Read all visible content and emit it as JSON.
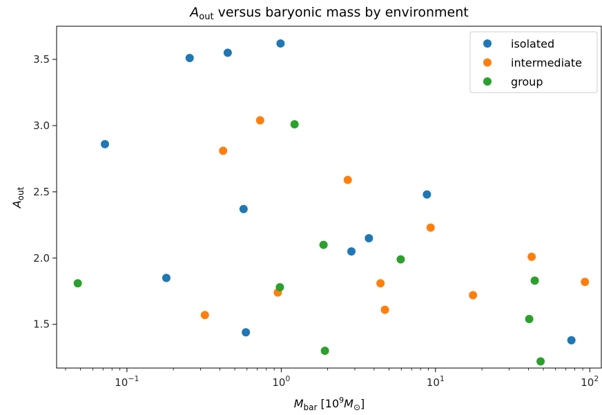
{
  "chart_data": {
    "type": "scatter",
    "title": {
      "main": "A",
      "sub": "out",
      "rest": " versus baryonic mass by environment"
    },
    "xlabel": {
      "main": "M",
      "sub": "bar",
      "rest": " [10",
      "sup": "9",
      "unit": "M",
      "unitsub": "⊙",
      "close": "]"
    },
    "ylabel": {
      "main": "A",
      "sub": "out"
    },
    "x_scale": "log",
    "xlim": [
      0.035,
      120
    ],
    "ylim": [
      1.17,
      3.75
    ],
    "x_ticks": [
      {
        "value": 0.1,
        "base": "10",
        "exp": "−1"
      },
      {
        "value": 1,
        "base": "10",
        "exp": "0"
      },
      {
        "value": 10,
        "base": "10",
        "exp": "1"
      },
      {
        "value": 100,
        "base": "10",
        "exp": "2"
      }
    ],
    "y_ticks": [
      {
        "value": 1.5,
        "label": "1.5"
      },
      {
        "value": 2.0,
        "label": "2.0"
      },
      {
        "value": 2.5,
        "label": "2.5"
      },
      {
        "value": 3.0,
        "label": "3.0"
      },
      {
        "value": 3.5,
        "label": "3.5"
      }
    ],
    "legend_position": "top-right",
    "grid": false,
    "series": [
      {
        "name": "isolated",
        "color": "#1f77b4",
        "points": [
          [
            0.072,
            2.86
          ],
          [
            0.18,
            1.85
          ],
          [
            0.255,
            3.51
          ],
          [
            0.45,
            3.55
          ],
          [
            0.57,
            2.37
          ],
          [
            0.59,
            1.44
          ],
          [
            0.99,
            3.62
          ],
          [
            2.85,
            2.05
          ],
          [
            3.7,
            2.15
          ],
          [
            8.8,
            2.48
          ],
          [
            76,
            1.38
          ]
        ]
      },
      {
        "name": "intermediate",
        "color": "#ff7f0e",
        "points": [
          [
            0.32,
            1.57
          ],
          [
            0.42,
            2.81
          ],
          [
            0.73,
            3.04
          ],
          [
            0.95,
            1.74
          ],
          [
            2.7,
            2.59
          ],
          [
            4.4,
            1.81
          ],
          [
            4.7,
            1.61
          ],
          [
            9.3,
            2.23
          ],
          [
            17.5,
            1.72
          ],
          [
            42,
            2.01
          ],
          [
            93,
            1.82
          ]
        ]
      },
      {
        "name": "group",
        "color": "#2ca02c",
        "points": [
          [
            0.048,
            1.81
          ],
          [
            0.98,
            1.78
          ],
          [
            1.22,
            3.01
          ],
          [
            1.88,
            2.1
          ],
          [
            1.92,
            1.3
          ],
          [
            5.95,
            1.99
          ],
          [
            40.5,
            1.54
          ],
          [
            44,
            1.83
          ],
          [
            48,
            1.22
          ]
        ]
      }
    ]
  }
}
